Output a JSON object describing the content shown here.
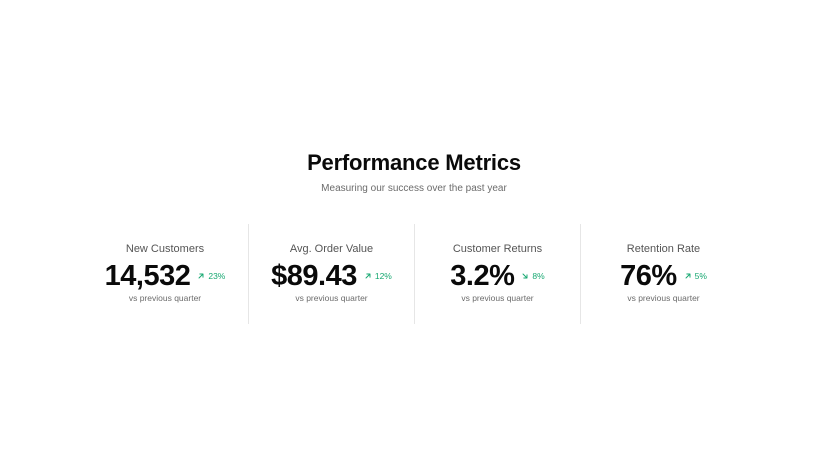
{
  "header": {
    "title": "Performance Metrics",
    "subtitle": "Measuring our success over the past year"
  },
  "colors": {
    "positive": "#16a871",
    "text": "#0a0a0a",
    "muted": "#6b6b6b",
    "divider": "#e6e6e6"
  },
  "metrics": [
    {
      "label": "New Customers",
      "value": "14,532",
      "change": "23%",
      "trend_icon": "arrow-up-right-icon",
      "caption": "vs previous quarter"
    },
    {
      "label": "Avg. Order Value",
      "value": "$89.43",
      "change": "12%",
      "trend_icon": "arrow-up-right-icon",
      "caption": "vs previous quarter"
    },
    {
      "label": "Customer Returns",
      "value": "3.2%",
      "change": "8%",
      "trend_icon": "arrow-down-right-icon",
      "caption": "vs previous quarter"
    },
    {
      "label": "Retention Rate",
      "value": "76%",
      "change": "5%",
      "trend_icon": "arrow-up-right-icon",
      "caption": "vs previous quarter"
    }
  ]
}
